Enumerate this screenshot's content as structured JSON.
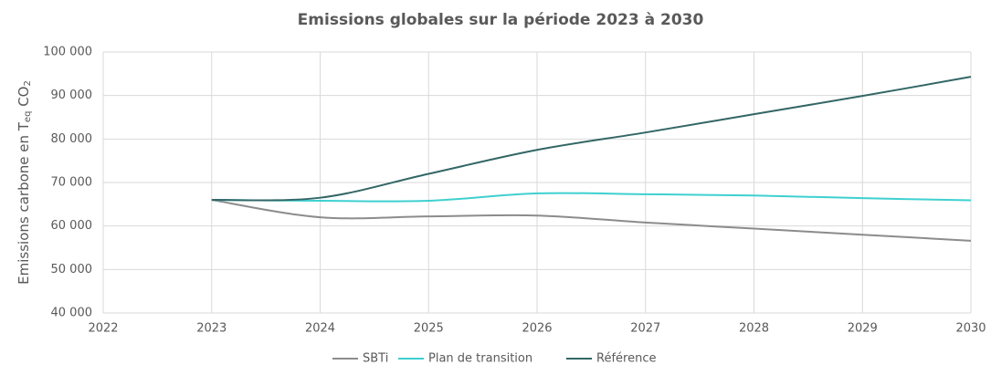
{
  "chart_data": {
    "type": "line",
    "title": "Emissions globales sur la période 2023 à 2030",
    "y_label": [
      "Emissions carbone en T",
      "eq",
      " CO",
      "2"
    ],
    "x": [
      2023,
      2024,
      2025,
      2026,
      2027,
      2028,
      2029,
      2030
    ],
    "series": [
      {
        "name": "SBTi",
        "color": "#8c8c8c",
        "values": [
          66000,
          62000,
          62200,
          62400,
          60800,
          59400,
          58000,
          56600
        ]
      },
      {
        "name": "Plan de transition",
        "color": "#3fd0d0",
        "values": [
          66000,
          65800,
          65800,
          67500,
          67300,
          67000,
          66400,
          65900
        ]
      },
      {
        "name": "Référence",
        "color": "#336666",
        "values": [
          66000,
          66500,
          72000,
          77500,
          81500,
          85700,
          89900,
          94300
        ]
      }
    ],
    "xlim": [
      2022,
      2030
    ],
    "xticks": [
      2022,
      2023,
      2024,
      2025,
      2026,
      2027,
      2028,
      2029,
      2030
    ],
    "ylim": [
      40000,
      100000
    ],
    "yticks": [
      {
        "value": 40000,
        "label": "40 000"
      },
      {
        "value": 50000,
        "label": "50 000"
      },
      {
        "value": 60000,
        "label": "60 000"
      },
      {
        "value": 70000,
        "label": "70 000"
      },
      {
        "value": 80000,
        "label": "80 000"
      },
      {
        "value": 90000,
        "label": "90 000"
      },
      {
        "value": 100000,
        "label": "100 000"
      }
    ],
    "grid": true,
    "legend": "bottom"
  }
}
